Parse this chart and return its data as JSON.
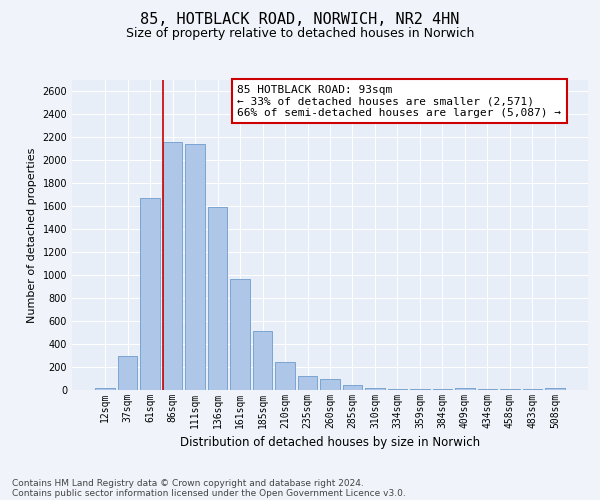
{
  "title_line1": "85, HOTBLACK ROAD, NORWICH, NR2 4HN",
  "title_line2": "Size of property relative to detached houses in Norwich",
  "xlabel": "Distribution of detached houses by size in Norwich",
  "ylabel": "Number of detached properties",
  "categories": [
    "12sqm",
    "37sqm",
    "61sqm",
    "86sqm",
    "111sqm",
    "136sqm",
    "161sqm",
    "185sqm",
    "210sqm",
    "235sqm",
    "260sqm",
    "285sqm",
    "310sqm",
    "334sqm",
    "359sqm",
    "384sqm",
    "409sqm",
    "434sqm",
    "458sqm",
    "483sqm",
    "508sqm"
  ],
  "values": [
    20,
    300,
    1670,
    2160,
    2140,
    1590,
    970,
    510,
    245,
    120,
    100,
    40,
    20,
    10,
    5,
    5,
    20,
    5,
    5,
    5,
    20
  ],
  "bar_color": "#aec6e8",
  "bar_edge_color": "#5b8fc4",
  "bg_color": "#e8eef8",
  "grid_color": "#ffffff",
  "vline_x_index": 3,
  "annotation_line1": "85 HOTBLACK ROAD: 93sqm",
  "annotation_line2": "← 33% of detached houses are smaller (2,571)",
  "annotation_line3": "66% of semi-detached houses are larger (5,087) →",
  "annotation_box_color": "#ffffff",
  "annotation_box_edge": "#cc0000",
  "vline_color": "#cc0000",
  "ylim": [
    0,
    2700
  ],
  "yticks": [
    0,
    200,
    400,
    600,
    800,
    1000,
    1200,
    1400,
    1600,
    1800,
    2000,
    2200,
    2400,
    2600
  ],
  "footer_line1": "Contains HM Land Registry data © Crown copyright and database right 2024.",
  "footer_line2": "Contains public sector information licensed under the Open Government Licence v3.0.",
  "title_fontsize": 11,
  "subtitle_fontsize": 9,
  "xlabel_fontsize": 8.5,
  "ylabel_fontsize": 8,
  "tick_fontsize": 7,
  "footer_fontsize": 6.5,
  "annotation_fontsize": 8
}
